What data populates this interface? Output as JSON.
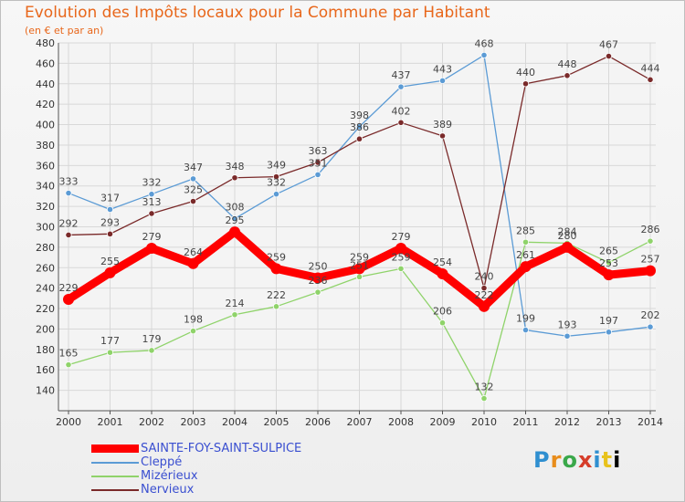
{
  "title": "Evolution des Impôts locaux pour la Commune par Habitant",
  "subtitle": "(en € et par an)",
  "brand": "Proxiti",
  "chart_data": {
    "type": "line",
    "title": "Evolution des Impôts locaux pour la Commune par Habitant",
    "subtitle": "(en € et par an)",
    "xlabel": "",
    "ylabel": "",
    "x": [
      "2000",
      "2001",
      "2002",
      "2003",
      "2004",
      "2005",
      "2006",
      "2007",
      "2008",
      "2009",
      "2010",
      "2011",
      "2012",
      "2013",
      "2014"
    ],
    "ylim": [
      120,
      480
    ],
    "yticks": [
      140,
      160,
      180,
      200,
      220,
      240,
      260,
      280,
      300,
      320,
      340,
      360,
      380,
      400,
      420,
      440,
      460,
      480
    ],
    "grid": true,
    "legend_position": "bottom-left",
    "series": [
      {
        "name": "SAINTE-FOY-SAINT-SULPICE",
        "color": "#ff0000",
        "emphasis": true,
        "values": [
          229,
          255,
          279,
          264,
          295,
          259,
          250,
          259,
          279,
          254,
          222,
          261,
          280,
          253,
          257
        ]
      },
      {
        "name": "Cleppé",
        "color": "#5b9bd5",
        "emphasis": false,
        "values": [
          333,
          317,
          332,
          347,
          308,
          332,
          351,
          398,
          437,
          443,
          468,
          199,
          193,
          197,
          202
        ]
      },
      {
        "name": "Mizérieux",
        "color": "#8fd36a",
        "emphasis": false,
        "values": [
          165,
          177,
          179,
          198,
          214,
          222,
          236,
          251,
          259,
          206,
          132,
          285,
          284,
          265,
          286
        ]
      },
      {
        "name": "Nervieux",
        "color": "#7a2a2a",
        "emphasis": false,
        "values": [
          292,
          293,
          313,
          325,
          348,
          349,
          363,
          386,
          402,
          389,
          240,
          440,
          448,
          467,
          444
        ]
      }
    ]
  }
}
